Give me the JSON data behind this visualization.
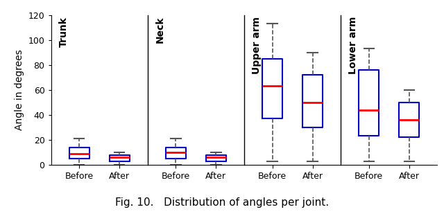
{
  "title": "Fig. 10.   Distribution of angles per joint.",
  "ylabel": "Angle in degrees",
  "subplots": [
    {
      "label": "Trunk",
      "xticks": [
        "Before",
        "After"
      ],
      "boxes": [
        {
          "whislo": 0,
          "q1": 5,
          "med": 9,
          "q3": 14,
          "whishi": 21
        },
        {
          "whislo": 0,
          "q1": 3,
          "med": 6,
          "q3": 8,
          "whishi": 10
        }
      ]
    },
    {
      "label": "Neck",
      "xticks": [
        "Before",
        "After"
      ],
      "boxes": [
        {
          "whislo": 0,
          "q1": 5,
          "med": 10,
          "q3": 14,
          "whishi": 21
        },
        {
          "whislo": 0,
          "q1": 3,
          "med": 6,
          "q3": 8,
          "whishi": 10
        }
      ]
    },
    {
      "label": "Upper arm",
      "xticks": [
        "Before",
        "After"
      ],
      "boxes": [
        {
          "whislo": 3,
          "q1": 37,
          "med": 63,
          "q3": 85,
          "whishi": 113
        },
        {
          "whislo": 3,
          "q1": 30,
          "med": 50,
          "q3": 72,
          "whishi": 90
        }
      ]
    },
    {
      "label": "Lower arm",
      "xticks": [
        "Before",
        "After"
      ],
      "boxes": [
        {
          "whislo": 3,
          "q1": 23,
          "med": 44,
          "q3": 76,
          "whishi": 93
        },
        {
          "whislo": 3,
          "q1": 22,
          "med": 36,
          "q3": 50,
          "whishi": 60
        }
      ]
    }
  ],
  "ylim": [
    0,
    120
  ],
  "yticks": [
    0,
    20,
    40,
    60,
    80,
    100,
    120
  ],
  "box_color": "#0000cc",
  "median_color": "#ff0000",
  "whisker_color": "#555555",
  "cap_color": "#555555",
  "label_fontsize": 10,
  "tick_fontsize": 9,
  "ylabel_fontsize": 10
}
